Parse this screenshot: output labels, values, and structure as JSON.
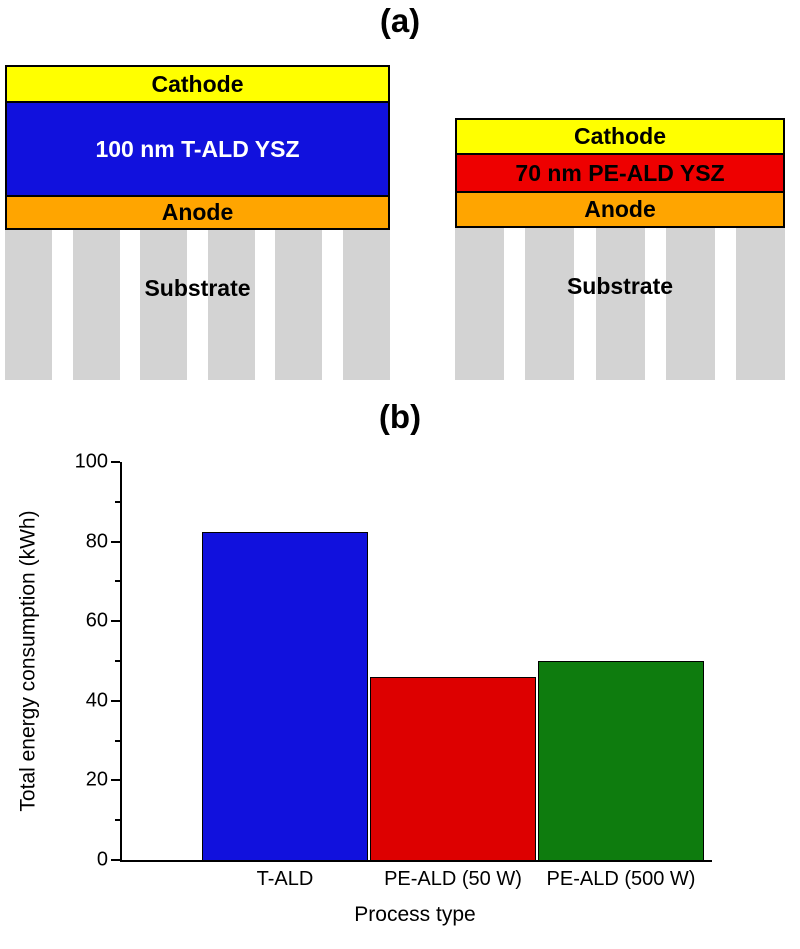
{
  "figure": {
    "panel_a_label": "(a)",
    "panel_b_label": "(b)"
  },
  "devices": [
    {
      "cathode_label": "Cathode",
      "electrolyte_label": "100 nm T-ALD YSZ",
      "anode_label": "Anode",
      "substrate_label": "Substrate"
    },
    {
      "cathode_label": "Cathode",
      "electrolyte_label": "70 nm PE-ALD YSZ",
      "anode_label": "Anode",
      "substrate_label": "Substrate"
    }
  ],
  "colors": {
    "cathode": "#FFFF00",
    "t_ald_electrolyte": "#1111DD",
    "pe_ald_electrolyte": "#EE0000",
    "anode": "#FFA500",
    "substrate": "#D3D3D3"
  },
  "chart_data": {
    "type": "bar",
    "categories": [
      "T-ALD",
      "PE-ALD (50 W)",
      "PE-ALD (500 W)"
    ],
    "values": [
      82.5,
      46,
      50
    ],
    "bar_colors": [
      "#1111DD",
      "#DD0000",
      "#0E7C0E"
    ],
    "title": "",
    "xlabel": "Process type",
    "ylabel": "Total energy consumption (kWh)",
    "ylim": [
      0,
      100
    ],
    "yticks": [
      0,
      20,
      40,
      60,
      80,
      100
    ],
    "minor_tick_interval": 10,
    "grid": false,
    "legend": false
  }
}
